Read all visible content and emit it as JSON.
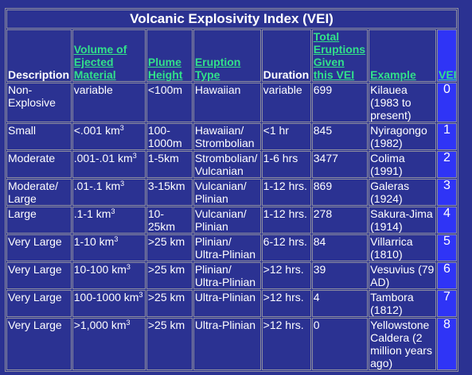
{
  "title": "Volcanic Explosivity Index (VEI)",
  "headers": {
    "description": "Description",
    "volume": "Volume of Ejected Material",
    "plume": "Plume Height",
    "eruption": "Eruption Type",
    "duration": "Duration",
    "total": "Total Eruptions Given this VEI",
    "example": "Example",
    "vei": "VEI"
  },
  "rows": [
    {
      "description": "Non-Explosive",
      "volume": "variable",
      "volume_sup": "",
      "plume": "<100m",
      "eruption": "Hawaiian",
      "duration": "variable",
      "total": "699",
      "example": "Kilauea (1983 to present)",
      "vei": "0"
    },
    {
      "description": "Small",
      "volume": "<.001 km",
      "volume_sup": "3",
      "plume": "100-1000m",
      "eruption": "Hawaiian/ Strombolian",
      "duration": "<1 hr",
      "total": "845",
      "example": "Nyiragongo (1982)",
      "vei": "1"
    },
    {
      "description": "Moderate",
      "volume": ".001-.01 km",
      "volume_sup": "3",
      "plume": "1-5km",
      "eruption": "Strombolian/ Vulcanian",
      "duration": "1-6 hrs",
      "total": "3477",
      "example": "Colima (1991)",
      "vei": "2"
    },
    {
      "description": "Moderate/ Large",
      "volume": ".01-.1 km",
      "volume_sup": "3",
      "plume": "3-15km",
      "eruption": "Vulcanian/ Plinian",
      "duration": "1-12 hrs.",
      "total": "869",
      "example": "Galeras (1924)",
      "vei": "3"
    },
    {
      "description": "Large",
      "volume": ".1-1 km",
      "volume_sup": "3",
      "plume": "10-25km",
      "eruption": "Vulcanian/ Plinian",
      "duration": "1-12 hrs.",
      "total": "278",
      "example": "Sakura-Jima (1914)",
      "vei": "4"
    },
    {
      "description": "Very Large",
      "volume": "1-10 km",
      "volume_sup": "3",
      "plume": ">25 km",
      "eruption": "Plinian/ Ultra-Plinian",
      "duration": "6-12 hrs.",
      "total": "84",
      "example": "Villarrica (1810)",
      "vei": "5"
    },
    {
      "description": "Very Large",
      "volume": "10-100 km",
      "volume_sup": "3",
      "plume": ">25 km",
      "eruption": "Plinian/ Ultra-Plinian",
      "duration": ">12 hrs.",
      "total": "39",
      "example": "Vesuvius (79 AD)",
      "vei": "6"
    },
    {
      "description": "Very Large",
      "volume": "100-1000 km",
      "volume_sup": "3",
      "plume": ">25 km",
      "eruption": "Ultra-Plinian",
      "duration": ">12 hrs.",
      "total": "4",
      "example": "Tambora (1812)",
      "vei": "7"
    },
    {
      "description": "Very Large",
      "volume": ">1,000 km",
      "volume_sup": "3",
      "plume": ">25 km",
      "eruption": "Ultra-Plinian",
      "duration": ">12 hrs.",
      "total": "0",
      "example": "Yellowstone Caldera (2 million years ago)",
      "vei": "8"
    }
  ]
}
